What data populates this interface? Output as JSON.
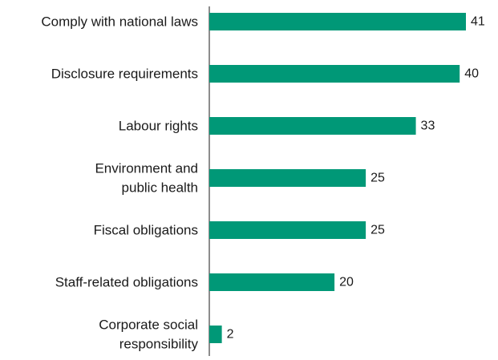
{
  "chart_data": {
    "type": "bar",
    "orientation": "horizontal",
    "title": "",
    "xlabel": "",
    "ylabel": "",
    "xlim": [
      0,
      41
    ],
    "grid": false,
    "legend": "none",
    "bar_color": "#009877",
    "categories": [
      [
        "Comply with national laws"
      ],
      [
        "Disclosure requirements"
      ],
      [
        "Labour rights"
      ],
      [
        "Environment and",
        "public health"
      ],
      [
        "Fiscal obligations"
      ],
      [
        "Staff-related obligations"
      ],
      [
        "Corporate social",
        "responsibility"
      ]
    ],
    "values": [
      41,
      40,
      33,
      25,
      25,
      20,
      2
    ]
  }
}
